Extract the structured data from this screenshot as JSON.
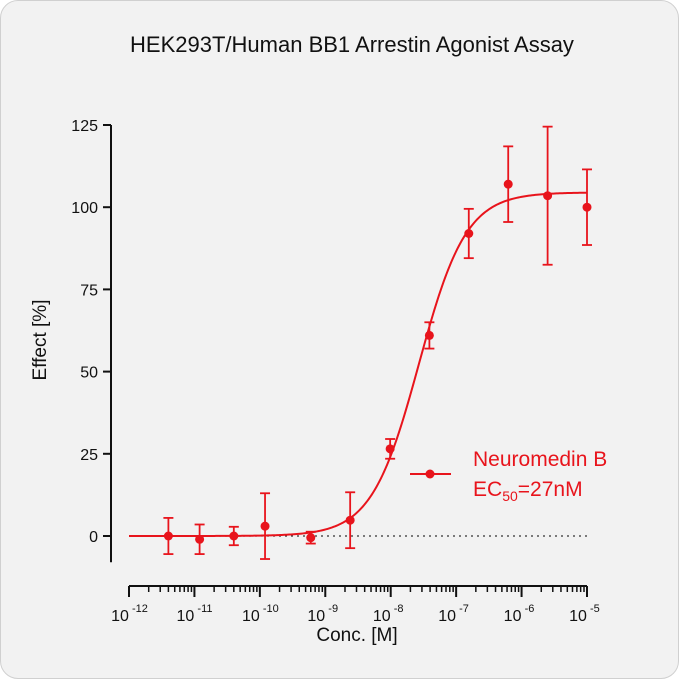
{
  "chart_data": {
    "type": "scatter",
    "title": "HEK293T/Human BB1 Arrestin Agonist Assay",
    "xlabel": "Conc. [M]",
    "ylabel": "Effect  [%]",
    "x_scale": "log",
    "xlim_exponents": [
      -12,
      -5
    ],
    "x_tick_base": "10",
    "x_tick_exponents": [
      "-12",
      "-11",
      "-10",
      "-9",
      "-8",
      "-7",
      "-6",
      "-5"
    ],
    "ylim": [
      -8,
      125
    ],
    "y_ticks": [
      "0",
      "25",
      "50",
      "75",
      "100",
      "125"
    ],
    "zero_reference_line": "dotted",
    "grid": false,
    "legend_position": "right",
    "series": [
      {
        "name": "Neuromedin B",
        "color": "#e8141c",
        "ec50_prefix": "EC",
        "ec50_subscript": "50",
        "ec50_value": "=27nM",
        "x": [
          4e-12,
          1.2e-11,
          4e-11,
          1.2e-10,
          6e-10,
          2.4e-09,
          9.8e-09,
          3.9e-08,
          1.56e-07,
          6.25e-07,
          2.5e-06,
          1e-05
        ],
        "y": [
          0,
          -1,
          0,
          3,
          -0.5,
          4.8,
          26.5,
          61,
          92,
          107,
          103.5,
          100
        ],
        "error": [
          5.5,
          4.5,
          2.8,
          10,
          1.8,
          8.5,
          3,
          4,
          7.5,
          11.5,
          21,
          11.5
        ],
        "fit": {
          "model": "4PL",
          "bottom": 0,
          "top": 104.5,
          "log_ec50": -7.57,
          "hill": 1.2
        }
      }
    ]
  }
}
